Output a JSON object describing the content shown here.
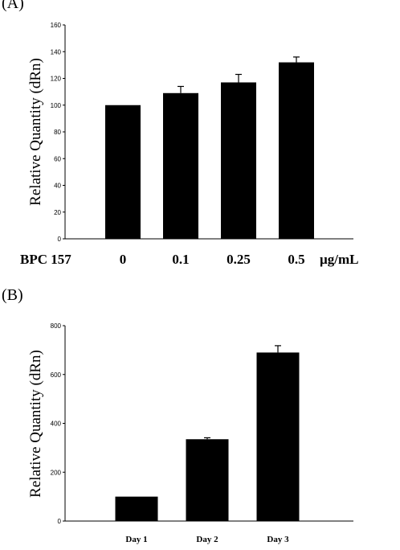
{
  "panels": {
    "a_label": "(A)",
    "b_label": "(B)"
  },
  "chart_data": [
    {
      "type": "bar",
      "panel": "(A)",
      "ylabel": "Relative Quantity (dRn)",
      "xlabel": "BPC 157",
      "unit_label": "µg/mL",
      "categories": [
        "0",
        "0.1",
        "0.25",
        "0.5"
      ],
      "values": [
        100,
        109,
        117,
        132
      ],
      "errors": [
        0,
        5,
        6,
        4
      ],
      "ylim": [
        0,
        160
      ],
      "yticks": [
        0,
        20,
        40,
        60,
        80,
        100,
        120,
        140,
        160
      ],
      "grid": false,
      "bar_color": "#000000"
    },
    {
      "type": "bar",
      "panel": "(B)",
      "ylabel": "Relative Quantity (dRn)",
      "categories": [
        "Day 1",
        "Day 2",
        "Day 3"
      ],
      "values": [
        100,
        335,
        690
      ],
      "errors": [
        0,
        6,
        28
      ],
      "ylim": [
        0,
        800
      ],
      "yticks": [
        0,
        200,
        400,
        600,
        800
      ],
      "grid": false,
      "bar_color": "#000000"
    }
  ]
}
